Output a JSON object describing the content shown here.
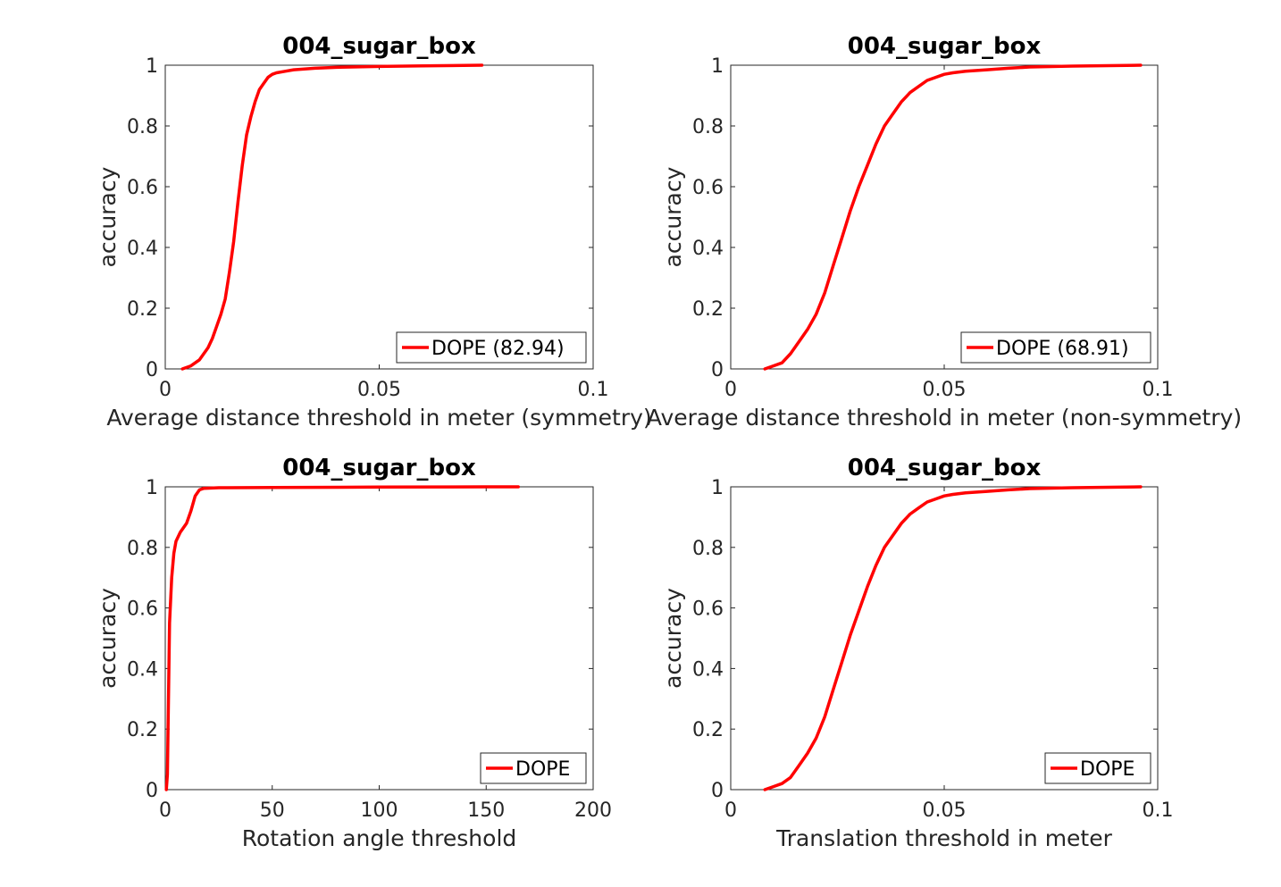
{
  "chart_data": [
    {
      "type": "line",
      "title": "004_sugar_box",
      "xlabel": "Average distance threshold in meter (symmetry)",
      "ylabel": "accuracy",
      "xlim": [
        0,
        0.1
      ],
      "ylim": [
        0,
        1
      ],
      "xticks": [
        "0",
        "0.05",
        "0.1"
      ],
      "yticks": [
        "0",
        "0.2",
        "0.4",
        "0.6",
        "0.8",
        "1"
      ],
      "legend_position": "bottom-right",
      "series": [
        {
          "name": "DOPE (82.94)",
          "color": "#ff0000",
          "x": [
            0.004,
            0.006,
            0.008,
            0.01,
            0.011,
            0.012,
            0.013,
            0.014,
            0.015,
            0.016,
            0.017,
            0.018,
            0.019,
            0.02,
            0.021,
            0.022,
            0.023,
            0.024,
            0.025,
            0.026,
            0.028,
            0.03,
            0.035,
            0.04,
            0.05,
            0.06,
            0.074
          ],
          "y": [
            0.0,
            0.01,
            0.03,
            0.07,
            0.1,
            0.14,
            0.18,
            0.23,
            0.32,
            0.42,
            0.55,
            0.67,
            0.77,
            0.83,
            0.88,
            0.92,
            0.94,
            0.96,
            0.97,
            0.975,
            0.98,
            0.985,
            0.99,
            0.993,
            0.996,
            0.998,
            1.0
          ]
        }
      ]
    },
    {
      "type": "line",
      "title": "004_sugar_box",
      "xlabel": "Average distance threshold in meter (non-symmetry)",
      "ylabel": "accuracy",
      "xlim": [
        0,
        0.1
      ],
      "ylim": [
        0,
        1
      ],
      "xticks": [
        "0",
        "0.05",
        "0.1"
      ],
      "yticks": [
        "0",
        "0.2",
        "0.4",
        "0.6",
        "0.8",
        "1"
      ],
      "legend_position": "bottom-right",
      "series": [
        {
          "name": "DOPE (68.91)",
          "color": "#ff0000",
          "x": [
            0.008,
            0.01,
            0.012,
            0.014,
            0.016,
            0.018,
            0.02,
            0.022,
            0.024,
            0.026,
            0.028,
            0.03,
            0.032,
            0.034,
            0.036,
            0.038,
            0.04,
            0.042,
            0.044,
            0.046,
            0.048,
            0.05,
            0.052,
            0.055,
            0.06,
            0.065,
            0.07,
            0.08,
            0.096
          ],
          "y": [
            0.0,
            0.01,
            0.02,
            0.05,
            0.09,
            0.13,
            0.18,
            0.25,
            0.34,
            0.43,
            0.52,
            0.6,
            0.67,
            0.74,
            0.8,
            0.84,
            0.88,
            0.91,
            0.93,
            0.95,
            0.96,
            0.97,
            0.975,
            0.98,
            0.985,
            0.99,
            0.994,
            0.997,
            1.0
          ]
        }
      ]
    },
    {
      "type": "line",
      "title": "004_sugar_box",
      "xlabel": "Rotation angle threshold",
      "ylabel": "accuracy",
      "xlim": [
        0,
        200
      ],
      "ylim": [
        0,
        1
      ],
      "xticks": [
        "0",
        "50",
        "100",
        "150",
        "200"
      ],
      "yticks": [
        "0",
        "0.2",
        "0.4",
        "0.6",
        "0.8",
        "1"
      ],
      "legend_position": "bottom-right",
      "series": [
        {
          "name": "DOPE",
          "color": "#ff0000",
          "x": [
            0.5,
            1,
            1.5,
            2,
            3,
            4,
            5,
            7,
            10,
            12,
            14,
            16,
            18,
            25,
            50,
            100,
            150,
            165
          ],
          "y": [
            0.0,
            0.05,
            0.3,
            0.55,
            0.7,
            0.78,
            0.82,
            0.85,
            0.88,
            0.92,
            0.97,
            0.99,
            0.995,
            0.997,
            0.998,
            0.999,
            1.0,
            1.0
          ]
        }
      ]
    },
    {
      "type": "line",
      "title": "004_sugar_box",
      "xlabel": "Translation threshold in meter",
      "ylabel": "accuracy",
      "xlim": [
        0,
        0.1
      ],
      "ylim": [
        0,
        1
      ],
      "xticks": [
        "0",
        "0.05",
        "0.1"
      ],
      "yticks": [
        "0",
        "0.2",
        "0.4",
        "0.6",
        "0.8",
        "1"
      ],
      "legend_position": "bottom-right",
      "series": [
        {
          "name": "DOPE",
          "color": "#ff0000",
          "x": [
            0.008,
            0.01,
            0.012,
            0.014,
            0.016,
            0.018,
            0.02,
            0.022,
            0.024,
            0.026,
            0.028,
            0.03,
            0.032,
            0.034,
            0.036,
            0.038,
            0.04,
            0.042,
            0.044,
            0.046,
            0.048,
            0.05,
            0.052,
            0.055,
            0.06,
            0.065,
            0.07,
            0.08,
            0.096
          ],
          "y": [
            0.0,
            0.01,
            0.02,
            0.04,
            0.08,
            0.12,
            0.17,
            0.24,
            0.33,
            0.42,
            0.51,
            0.59,
            0.67,
            0.74,
            0.8,
            0.84,
            0.88,
            0.91,
            0.93,
            0.95,
            0.96,
            0.97,
            0.975,
            0.98,
            0.985,
            0.99,
            0.994,
            0.997,
            1.0
          ]
        }
      ]
    }
  ]
}
